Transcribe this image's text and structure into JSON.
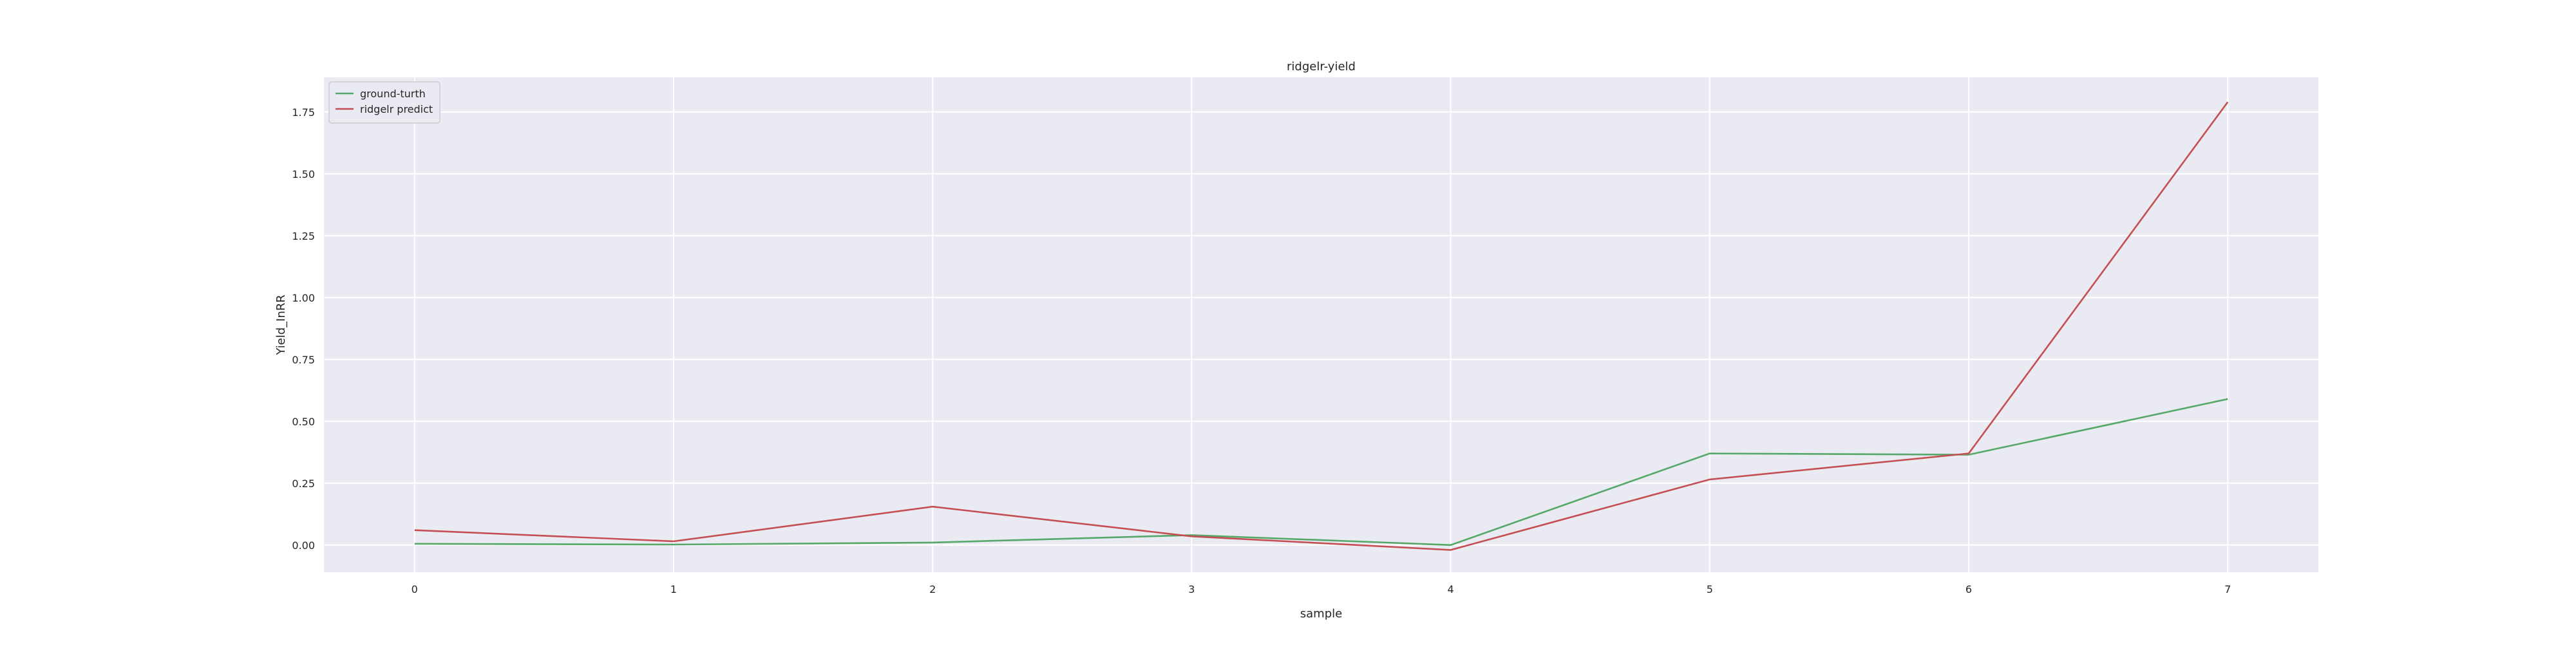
{
  "chart_data": {
    "type": "line",
    "title": "ridgelr-yield",
    "xlabel": "sample",
    "ylabel": "Yield_InRR",
    "x": [
      0,
      1,
      2,
      3,
      4,
      5,
      6,
      7
    ],
    "x_tick_labels": [
      "0",
      "1",
      "2",
      "3",
      "4",
      "5",
      "6",
      "7"
    ],
    "y_ticks": [
      0.0,
      0.25,
      0.5,
      0.75,
      1.0,
      1.25,
      1.5,
      1.75
    ],
    "y_tick_labels": [
      "0.00",
      "0.25",
      "0.50",
      "0.75",
      "1.00",
      "1.25",
      "1.50",
      "1.75"
    ],
    "xlim": [
      -0.35,
      7.35
    ],
    "ylim": [
      -0.11,
      1.89
    ],
    "grid": true,
    "legend_position": "top-left",
    "colors": {
      "background": "#eaeaf2",
      "grid": "#ffffff"
    },
    "series": [
      {
        "name": "ground-turth",
        "color": "#55a868",
        "values": [
          0.005,
          0.002,
          0.01,
          0.04,
          0.0,
          0.37,
          0.365,
          0.59
        ]
      },
      {
        "name": "ridgelr predict",
        "color": "#c44e52",
        "values": [
          0.06,
          0.015,
          0.155,
          0.035,
          -0.02,
          0.265,
          0.37,
          1.79
        ]
      }
    ]
  }
}
